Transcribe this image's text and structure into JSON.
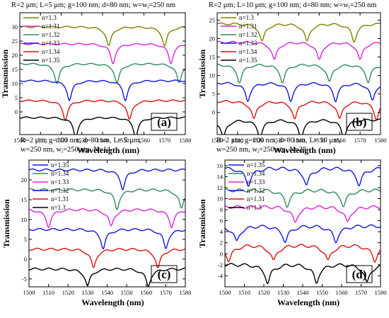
{
  "chart_data": [
    {
      "type": "line",
      "title": "R=2 μm; L=5 μm; g=100 nm; d=80 nm; w=w",
      "title_sub": "i",
      "title_tail": "=250 nm",
      "title_line2": "",
      "panel_label": "(a)",
      "xlabel": "Wavelength (nm)",
      "ylabel": "Transmission",
      "xlim": [
        1500,
        1580
      ],
      "ylim": [
        -8,
        35
      ],
      "xticks": [
        1500,
        1510,
        1520,
        1530,
        1540,
        1550,
        1560,
        1570,
        1580
      ],
      "yticks": [
        0,
        5,
        10,
        15,
        20,
        25,
        30
      ],
      "legend_position": "top-left",
      "series": [
        {
          "name": "n=1.3",
          "color": "#808000",
          "offset": 30,
          "depth": 6,
          "dips": [
            1543,
            1570
          ]
        },
        {
          "name": "n=1.31",
          "color": "#dd22dd",
          "offset": 24,
          "depth": 6,
          "dips": [
            1545,
            1573
          ]
        },
        {
          "name": "n=1.32",
          "color": "#2e8b57",
          "offset": 17,
          "depth": 6,
          "dips": [
            1518,
            1547,
            1577
          ]
        },
        {
          "name": "n=1.33",
          "color": "#1515dd",
          "offset": 11,
          "depth": 6,
          "dips": [
            1524,
            1551
          ]
        },
        {
          "name": "n=1.34",
          "color": "#dd1111",
          "offset": 4,
          "depth": 6,
          "dips": [
            1522,
            1553
          ]
        },
        {
          "name": "n=1.35",
          "color": "#000000",
          "offset": -2,
          "depth": 6,
          "dips": [
            1527,
            1556
          ]
        }
      ]
    },
    {
      "type": "line",
      "title": "R=2 μm; L=10 μm; g=100 nm; d=80 nm; w=w",
      "title_sub": "i",
      "title_tail": "=250 nm",
      "title_line2": "",
      "panel_label": "(b)",
      "xlabel": "Wavelength (nm)",
      "ylabel": "Transmission",
      "xlim": [
        1500,
        1580
      ],
      "ylim": [
        -6,
        27
      ],
      "xticks": [
        1500,
        1510,
        1520,
        1530,
        1540,
        1550,
        1560,
        1570,
        1580
      ],
      "yticks": [
        0,
        5,
        10,
        15,
        20,
        25
      ],
      "legend_position": "top-left",
      "series": [
        {
          "name": "n=1.3",
          "color": "#808000",
          "offset": 24,
          "depth": 4,
          "dips": [
            1522,
            1544,
            1567
          ]
        },
        {
          "name": "n=1.31",
          "color": "#dd22dd",
          "offset": 19,
          "depth": 4,
          "dips": [
            1528,
            1550,
            1570
          ]
        },
        {
          "name": "n=1.32",
          "color": "#2e8b57",
          "offset": 13,
          "depth": 4,
          "dips": [
            1511,
            1532,
            1555,
            1574
          ]
        },
        {
          "name": "n=1.33",
          "color": "#1515dd",
          "offset": 8,
          "depth": 4,
          "dips": [
            1515,
            1536,
            1558,
            1576
          ]
        },
        {
          "name": "n=1.34",
          "color": "#dd1111",
          "offset": 3,
          "depth": 4,
          "dips": [
            1518,
            1538,
            1560,
            1578
          ]
        },
        {
          "name": "n=1.35",
          "color": "#000000",
          "offset": -2,
          "depth": 4,
          "dips": [
            1503,
            1521,
            1541,
            1562
          ]
        }
      ]
    },
    {
      "type": "line",
      "title": "R=2 μm; g=100 nm, d=80 nm, L= 5 μm,",
      "title_sub": "",
      "title_tail": "",
      "title_line2": "w=250 nm, w",
      "title_line2_sub": "i",
      "title_line2_tail": "=250 nm, N=14",
      "panel_label": "(c)",
      "xlabel": "Wavelength (nm)",
      "ylabel": "Transmission",
      "xlim": [
        1500,
        1580
      ],
      "ylim": [
        -7,
        25
      ],
      "xticks": [
        1500,
        1510,
        1520,
        1530,
        1540,
        1550,
        1560,
        1570,
        1580
      ],
      "yticks": [
        -5,
        0,
        5,
        10,
        15,
        20
      ],
      "legend_position": "top-left",
      "series": [
        {
          "name": "n=1.35",
          "color": "#1515dd",
          "offset": 22.5,
          "depth": 4,
          "dips": [
            1548
          ]
        },
        {
          "name": "n=1.34",
          "color": "#2e8b57",
          "offset": 17.5,
          "depth": 4,
          "dips": [
            1545,
            1578
          ]
        },
        {
          "name": "n=1.33",
          "color": "#dd22dd",
          "offset": 12.5,
          "depth": 3.5,
          "dips": [
            1510,
            1542,
            1573
          ]
        },
        {
          "name": "n=1.32",
          "color": "#1515dd",
          "offset": 7.5,
          "depth": 4,
          "dips": [
            1538,
            1570
          ]
        },
        {
          "name": "n=1.31",
          "color": "#dd1111",
          "offset": 2.5,
          "depth": 4,
          "dips": [
            1533,
            1566
          ]
        },
        {
          "name": "n=1.3",
          "color": "#000000",
          "offset": -2.5,
          "depth": 3.5,
          "dips": [
            1530,
            1561
          ]
        }
      ]
    },
    {
      "type": "line",
      "title": "R=2 μm; g=100 nm, d=80 nm, L= 10 μm,",
      "title_sub": "",
      "title_tail": "",
      "title_line2": "w=250 nm, w",
      "title_line2_sub": "i",
      "title_line2_tail": "=250 nm, N=28",
      "panel_label": "(d)",
      "xlabel": "Wavelength (nm)",
      "ylabel": "Transmission",
      "xlim": [
        1500,
        1580
      ],
      "ylim": [
        -6,
        17
      ],
      "xticks": [
        1500,
        1510,
        1520,
        1530,
        1540,
        1550,
        1560,
        1570,
        1580
      ],
      "yticks": [
        -4,
        -2,
        0,
        2,
        4,
        6,
        8,
        10,
        12,
        14,
        16
      ],
      "legend_position": "top-left",
      "series": [
        {
          "name": "n=1.35",
          "color": "#1515dd",
          "offset": 15.5,
          "depth": 2.2,
          "dips": [
            1512,
            1542,
            1569
          ]
        },
        {
          "name": "n=1.34",
          "color": "#2e8b57",
          "offset": 11.5,
          "depth": 2,
          "dips": [
            1532,
            1561
          ]
        },
        {
          "name": "n=1.33",
          "color": "#dd22dd",
          "offset": 8.5,
          "depth": 2,
          "dips": [
            1536,
            1563
          ]
        },
        {
          "name": "n=1.32",
          "color": "#1515dd",
          "offset": 5,
          "depth": 2,
          "dips": [
            1506,
            1531,
            1557
          ]
        },
        {
          "name": "n=1.31",
          "color": "#dd1111",
          "offset": 1.5,
          "depth": 2,
          "dips": [
            1502,
            1525,
            1553,
            1577
          ]
        },
        {
          "name": "n=1.3",
          "color": "#000000",
          "offset": -2,
          "depth": 2.5,
          "dips": [
            1522,
            1547,
            1573
          ]
        }
      ]
    }
  ]
}
